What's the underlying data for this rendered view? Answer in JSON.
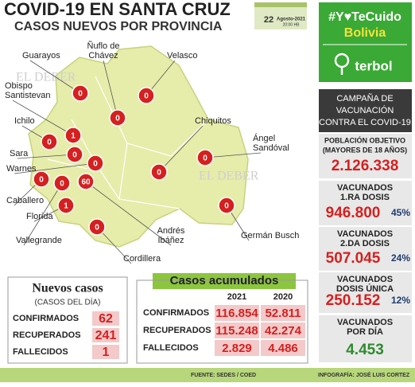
{
  "header": {
    "title": "COVID-19 EN SANTA CRUZ",
    "subtitle": "CASOS NUEVOS POR PROVINCIA"
  },
  "date": {
    "day": "22",
    "month_year": "Agosto-2021",
    "time": "20:00 HB"
  },
  "badge": {
    "hashtag": "#Y♥TeCuido",
    "country": "Bolivia",
    "sponsor": "terbol"
  },
  "watermark": "EL DEBER",
  "map": {
    "provinces": [
      {
        "label": [
          "Guarayos"
        ],
        "cases": "0"
      },
      {
        "label": [
          "Ñuflo de",
          "Chávez"
        ],
        "cases": "0"
      },
      {
        "label": [
          "Velasco"
        ],
        "cases": "0"
      },
      {
        "label": [
          "Obispo",
          "Santistevan"
        ],
        "cases": "1"
      },
      {
        "label": [
          "Ichilo"
        ],
        "cases": "0"
      },
      {
        "label": [
          "Sara"
        ],
        "cases": "0"
      },
      {
        "label": [
          "Warnes"
        ],
        "cases": "0"
      },
      {
        "label": [
          "Caballero"
        ],
        "cases": "0"
      },
      {
        "label": [
          "Florida"
        ],
        "cases": "1"
      },
      {
        "label": [
          "Vallegrande"
        ],
        "cases": "0"
      },
      {
        "label": [
          "Chiquitos"
        ],
        "cases": "0"
      },
      {
        "label": [
          "Ángel",
          "Sandóval"
        ],
        "cases": "0"
      },
      {
        "label": [
          "Andrés",
          "Ibáñez"
        ],
        "cases": "60"
      },
      {
        "label": [
          "Germán Busch"
        ],
        "cases": "0"
      },
      {
        "label": [
          "Cordillera"
        ],
        "cases": "0"
      }
    ]
  },
  "vaccination": {
    "heading": [
      "CAMPAÑA DE",
      "VACUNACIÓN",
      "CONTRA EL COVID-19"
    ],
    "sections": [
      {
        "label": [
          "POBLACIÓN OBJETIVO",
          "(MAYORES DE 18 AÑOS)"
        ],
        "value": "2.126.338"
      },
      {
        "label": [
          "VACUNADOS",
          "1.RA DOSIS"
        ],
        "value": "946.800",
        "percent": "45%"
      },
      {
        "label": [
          "VACUNADOS",
          "2.DA DOSIS"
        ],
        "value": "507.045",
        "percent": "24%"
      },
      {
        "label": [
          "VACUNADOS",
          "DOSIS ÚNICA"
        ],
        "value": "250.152",
        "percent": "12%"
      },
      {
        "label": [
          "VACUNADOS",
          "POR DÍA"
        ],
        "value": "4.453"
      }
    ]
  },
  "new_cases": {
    "title": "Nuevos casos",
    "subtitle": "(CASOS DEL DÍA)",
    "rows": [
      [
        "CONFIRMADOS",
        "62"
      ],
      [
        "RECUPERADOS",
        "241"
      ],
      [
        "FALLECIDOS",
        "1"
      ]
    ]
  },
  "cumulative": {
    "title": "Casos acumulados",
    "columns": [
      "2021",
      "2020"
    ],
    "rows": [
      [
        "CONFIRMADOS",
        "116.854",
        "52.811"
      ],
      [
        "RECUPERADOS",
        "115.248",
        "42.274"
      ],
      [
        "FALLECIDOS",
        "2.829",
        "4.486"
      ]
    ]
  },
  "footer": {
    "source": "FUENTE: SEDES / COED",
    "credit": "INFOGRAFÍA: JOSÉ LUIS CORTEZ"
  }
}
